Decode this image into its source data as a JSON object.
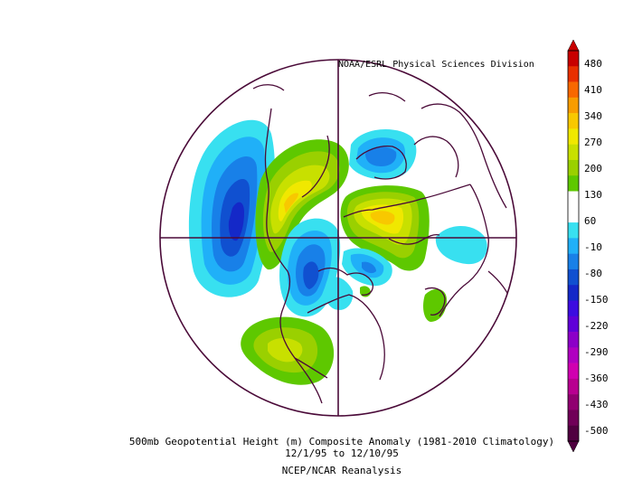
{
  "map": {
    "credit": "NOAA/ESRL Physical Sciences Division",
    "title_line1": "500mb Geopotential Height (m) Composite Anomaly (1981-2010 Climatology)",
    "title_line2": "12/1/95  to 12/10/95",
    "title_line3": "NCEP/NCAR Reanalysis",
    "projection": "north-polar-stereographic"
  },
  "colorbar": {
    "units": "m",
    "labels": [
      "480",
      "410",
      "340",
      "270",
      "200",
      "130",
      "60",
      "-10",
      "-80",
      "-150",
      "-220",
      "-290",
      "-360",
      "-430",
      "-500"
    ],
    "colors": [
      "#c80000",
      "#e83000",
      "#f86800",
      "#f89c00",
      "#f8c800",
      "#f0e800",
      "#c8e000",
      "#9ad000",
      "#5ec800",
      "#ffffff",
      "#ffffff",
      "#38e0f0",
      "#20b0f8",
      "#1880e8",
      "#1050d0",
      "#1428c8",
      "#3c0ce0",
      "#6000d8",
      "#8c00c8",
      "#b000c0",
      "#d000b0",
      "#b80090",
      "#900070",
      "#700058",
      "#500040"
    ]
  }
}
